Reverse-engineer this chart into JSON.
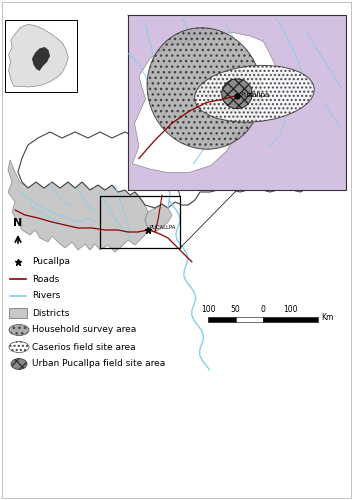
{
  "figure_bg": "#ffffff",
  "inset_bg": "#d4c0e0",
  "district_color": "#c8c8c8",
  "district_edge": "#888888",
  "dept_edge": "#555555",
  "river_color": "#87ceeb",
  "road_color": "#8b0000",
  "legend": {
    "marker_label": "Pucallpa",
    "road_label": "Roads",
    "river_label": "Rivers",
    "district_label": "Districts",
    "hh_label": "Household survey area",
    "caserios_label": "Caserios field site area",
    "urban_label": "Urban Pucallpa field site area"
  },
  "scale_labels": [
    "100",
    "50",
    "0",
    "100"
  ],
  "scale_unit": "Km"
}
